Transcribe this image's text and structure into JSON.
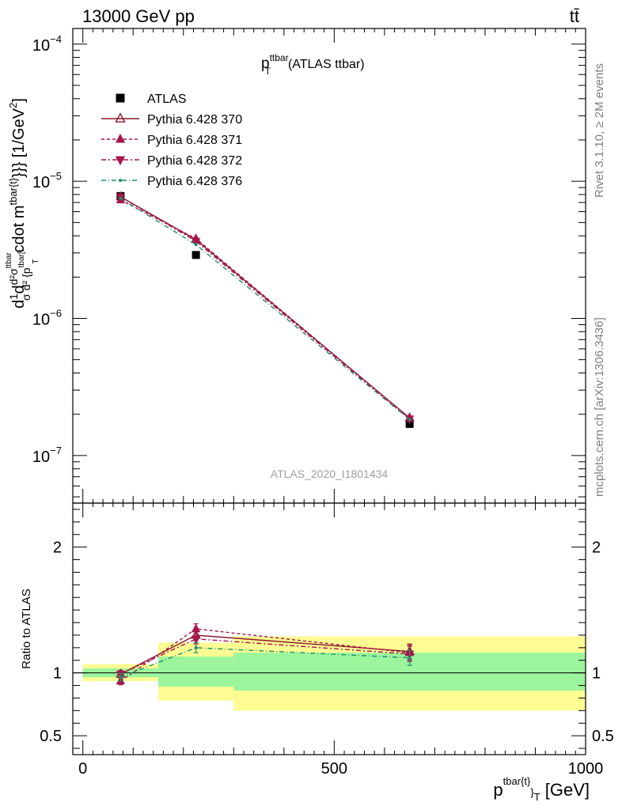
{
  "header": {
    "left": "13000 GeV pp",
    "right": "tt̄"
  },
  "side_labels": {
    "rivet": "Rivet 3.1.10, ≥ 2M events",
    "mcplots": "mcplots.cern.ch [arXiv:1306.3436]"
  },
  "chart_data": [
    {
      "type": "line",
      "title_main": "p",
      "title_sup": "ttbar",
      "title_sub": "T",
      "title_suffix": "(ATLAS ttbar)",
      "watermark": "ATLAS_2020_I1801434",
      "ylabel": "d\\frac{1}{σ}d\\frac{d²σ^{ttbar}}{d² {p^{tbar[t]}_T}} cdot m^{tbar{t}}}} [1/GeV²]",
      "ylabel_parts": {
        "d1": "d",
        "one": "1",
        "sigma": "σ",
        "d2": "d",
        "num_d2sigma": "d²σ",
        "num_sup": "ttbar",
        "den_d2": "d² {p",
        "den_sup": "tbar[t",
        "den_sub": "T",
        "cdot": "cdot m",
        "m_sup": "tbar{t}",
        "unit": "}}} [1/GeV",
        "unit_sup": "2",
        "unit_end": "]"
      },
      "yscale": "log",
      "ylim": [
        4.5e-08,
        0.00013
      ],
      "xlim": [
        -20,
        1000
      ],
      "y_ticks": [
        {
          "value": 1e-07,
          "base": "10",
          "exp": "−7"
        },
        {
          "value": 1e-06,
          "base": "10",
          "exp": "−6"
        },
        {
          "value": 1e-05,
          "base": "10",
          "exp": "−5"
        },
        {
          "value": 0.0001,
          "base": "10",
          "exp": "−4"
        }
      ],
      "x": [
        75,
        225,
        650
      ],
      "series": [
        {
          "name": "ATLAS",
          "values": [
            7.8e-06,
            2.9e-06,
            1.7e-07
          ],
          "color": "#000000",
          "marker": "square",
          "dash": "none"
        },
        {
          "name": "Pythia 6.428 370",
          "values": [
            7.7e-06,
            3.75e-06,
            1.88e-07
          ],
          "color": "#8b1a2b",
          "marker": "triangle-up-open",
          "dash": "solid"
        },
        {
          "name": "Pythia 6.428 371",
          "values": [
            7.3e-06,
            3.82e-06,
            1.87e-07
          ],
          "color": "#a8154e",
          "marker": "triangle-up",
          "dash": "4,3"
        },
        {
          "name": "Pythia 6.428 372",
          "values": [
            7.7e-06,
            3.65e-06,
            1.85e-07
          ],
          "color": "#a8154e",
          "marker": "triangle-down",
          "dash": "6,3,2,3"
        },
        {
          "name": "Pythia 6.428 376",
          "values": [
            7.5e-06,
            3.45e-06,
            1.83e-07
          ],
          "color": "#1a9070",
          "marker": "dot",
          "dash": "6,3,1,3"
        }
      ]
    },
    {
      "type": "line",
      "ylabel": "Ratio to ATLAS",
      "yscale": "linear",
      "ylim": [
        0.35,
        2.35
      ],
      "xlim": [
        -20,
        1000
      ],
      "y_ticks": [
        0.5,
        1,
        2
      ],
      "y_tick_labels": [
        "0.5",
        "1",
        "2"
      ],
      "x_ticks": [
        0,
        500,
        1000
      ],
      "x_tick_labels": [
        "0",
        "500",
        "1000"
      ],
      "xlabel_main": "p",
      "xlabel_sup": "tbar{t}",
      "xlabel_sub": "}",
      "xlabel_sub2": "T",
      "xlabel_unit": " [GeV]",
      "bands": [
        {
          "x": [
            0,
            150
          ],
          "inner": [
            0.965,
            1.035
          ],
          "outer": [
            0.935,
            1.07
          ]
        },
        {
          "x": [
            150,
            300
          ],
          "inner": [
            0.89,
            1.13
          ],
          "outer": [
            0.78,
            1.24
          ]
        },
        {
          "x": [
            300,
            1000
          ],
          "inner": [
            0.86,
            1.16
          ],
          "outer": [
            0.7,
            1.29
          ]
        }
      ],
      "band_colors": {
        "inner": "#9cf59c",
        "outer": "#fcfc92"
      },
      "x": [
        75,
        225,
        650
      ],
      "series": [
        {
          "name": "Pythia 6.428 370",
          "values": [
            0.99,
            1.3,
            1.17
          ],
          "err": [
            0.03,
            0.04,
            0.06
          ],
          "color": "#8b1a2b",
          "marker": "triangle-up-open",
          "dash": "solid"
        },
        {
          "name": "Pythia 6.428 371",
          "values": [
            0.935,
            1.35,
            1.16
          ],
          "err": [
            0.03,
            0.04,
            0.06
          ],
          "color": "#a8154e",
          "marker": "triangle-up",
          "dash": "4,3"
        },
        {
          "name": "Pythia 6.428 372",
          "values": [
            0.99,
            1.27,
            1.15
          ],
          "err": [
            0.03,
            0.04,
            0.06
          ],
          "color": "#a8154e",
          "marker": "triangle-down",
          "dash": "6,3,2,3"
        },
        {
          "name": "Pythia 6.428 376",
          "values": [
            0.965,
            1.2,
            1.12
          ],
          "err": [
            0.03,
            0.04,
            0.06
          ],
          "color": "#1a9070",
          "marker": "dot",
          "dash": "6,3,1,3"
        }
      ]
    }
  ]
}
